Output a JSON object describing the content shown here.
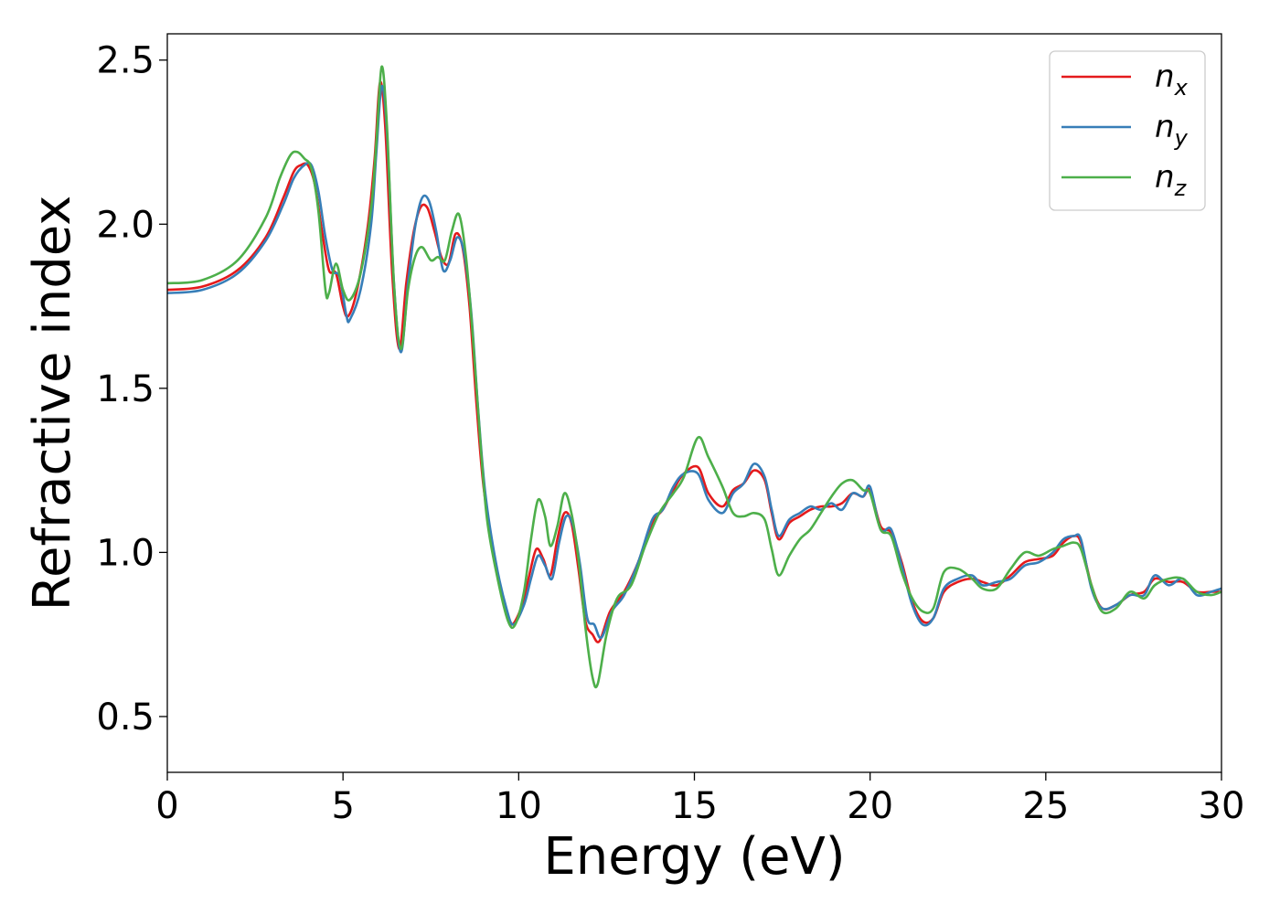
{
  "chart_data": {
    "type": "line",
    "title": "",
    "xlabel": "Energy (eV)",
    "ylabel": "Refractive index",
    "xlim": [
      0,
      30
    ],
    "ylim": [
      0.33,
      2.58
    ],
    "xticks": [
      0,
      5,
      10,
      15,
      20,
      25,
      30
    ],
    "xtick_labels": [
      "0",
      "5",
      "10",
      "15",
      "20",
      "25",
      "30"
    ],
    "yticks": [
      0.5,
      1.0,
      1.5,
      2.0,
      2.5
    ],
    "ytick_labels": [
      "0.5",
      "1.0",
      "1.5",
      "2.0",
      "2.5"
    ],
    "grid": false,
    "legend_position": "top-right",
    "series": [
      {
        "name": "n",
        "subscript": "x",
        "color": "#e41a1c",
        "points": [
          [
            0,
            1.8
          ],
          [
            1,
            1.81
          ],
          [
            2,
            1.86
          ],
          [
            2.8,
            1.96
          ],
          [
            3.3,
            2.08
          ],
          [
            3.6,
            2.16
          ],
          [
            3.8,
            2.18
          ],
          [
            4.0,
            2.18
          ],
          [
            4.2,
            2.12
          ],
          [
            4.4,
            1.98
          ],
          [
            4.6,
            1.86
          ],
          [
            4.8,
            1.85
          ],
          [
            5.0,
            1.75
          ],
          [
            5.15,
            1.72
          ],
          [
            5.4,
            1.8
          ],
          [
            5.7,
            1.99
          ],
          [
            5.9,
            2.2
          ],
          [
            6.05,
            2.43
          ],
          [
            6.2,
            2.3
          ],
          [
            6.4,
            1.85
          ],
          [
            6.6,
            1.62
          ],
          [
            6.8,
            1.82
          ],
          [
            7.0,
            1.97
          ],
          [
            7.2,
            2.05
          ],
          [
            7.4,
            2.05
          ],
          [
            7.6,
            1.98
          ],
          [
            7.8,
            1.9
          ],
          [
            8.0,
            1.88
          ],
          [
            8.2,
            1.97
          ],
          [
            8.4,
            1.93
          ],
          [
            8.6,
            1.75
          ],
          [
            8.8,
            1.45
          ],
          [
            9.0,
            1.2
          ],
          [
            9.3,
            0.99
          ],
          [
            9.6,
            0.84
          ],
          [
            9.8,
            0.78
          ],
          [
            10.1,
            0.84
          ],
          [
            10.3,
            0.93
          ],
          [
            10.5,
            1.01
          ],
          [
            10.7,
            0.98
          ],
          [
            10.9,
            0.93
          ],
          [
            11.1,
            1.04
          ],
          [
            11.3,
            1.12
          ],
          [
            11.5,
            1.09
          ],
          [
            11.7,
            0.95
          ],
          [
            11.9,
            0.79
          ],
          [
            12.1,
            0.75
          ],
          [
            12.3,
            0.73
          ],
          [
            12.6,
            0.82
          ],
          [
            13.0,
            0.88
          ],
          [
            13.4,
            0.97
          ],
          [
            13.8,
            1.09
          ],
          [
            14.1,
            1.13
          ],
          [
            14.4,
            1.19
          ],
          [
            14.7,
            1.24
          ],
          [
            15.1,
            1.26
          ],
          [
            15.4,
            1.18
          ],
          [
            15.8,
            1.14
          ],
          [
            16.1,
            1.19
          ],
          [
            16.4,
            1.21
          ],
          [
            16.7,
            1.25
          ],
          [
            17.0,
            1.22
          ],
          [
            17.2,
            1.12
          ],
          [
            17.4,
            1.04
          ],
          [
            17.7,
            1.09
          ],
          [
            18.0,
            1.11
          ],
          [
            18.3,
            1.13
          ],
          [
            18.6,
            1.14
          ],
          [
            18.9,
            1.14
          ],
          [
            19.2,
            1.15
          ],
          [
            19.5,
            1.18
          ],
          [
            19.8,
            1.17
          ],
          [
            20.0,
            1.19
          ],
          [
            20.3,
            1.08
          ],
          [
            20.6,
            1.06
          ],
          [
            20.9,
            0.97
          ],
          [
            21.2,
            0.85
          ],
          [
            21.5,
            0.79
          ],
          [
            21.8,
            0.8
          ],
          [
            22.1,
            0.88
          ],
          [
            22.5,
            0.91
          ],
          [
            22.9,
            0.92
          ],
          [
            23.2,
            0.91
          ],
          [
            23.6,
            0.9
          ],
          [
            24.0,
            0.93
          ],
          [
            24.4,
            0.97
          ],
          [
            24.8,
            0.98
          ],
          [
            25.2,
            0.99
          ],
          [
            25.5,
            1.03
          ],
          [
            25.8,
            1.05
          ],
          [
            26.0,
            1.03
          ],
          [
            26.3,
            0.9
          ],
          [
            26.6,
            0.83
          ],
          [
            27.0,
            0.84
          ],
          [
            27.4,
            0.87
          ],
          [
            27.8,
            0.88
          ],
          [
            28.1,
            0.92
          ],
          [
            28.5,
            0.91
          ],
          [
            28.9,
            0.91
          ],
          [
            29.3,
            0.88
          ],
          [
            29.7,
            0.88
          ],
          [
            30,
            0.88
          ]
        ]
      },
      {
        "name": "n",
        "subscript": "y",
        "color": "#377eb8",
        "points": [
          [
            0,
            1.79
          ],
          [
            1,
            1.8
          ],
          [
            2,
            1.85
          ],
          [
            2.8,
            1.95
          ],
          [
            3.3,
            2.06
          ],
          [
            3.6,
            2.14
          ],
          [
            3.9,
            2.18
          ],
          [
            4.1,
            2.18
          ],
          [
            4.3,
            2.1
          ],
          [
            4.5,
            1.96
          ],
          [
            4.7,
            1.86
          ],
          [
            4.9,
            1.84
          ],
          [
            5.1,
            1.72
          ],
          [
            5.2,
            1.71
          ],
          [
            5.5,
            1.8
          ],
          [
            5.8,
            2.0
          ],
          [
            5.95,
            2.22
          ],
          [
            6.1,
            2.42
          ],
          [
            6.25,
            2.28
          ],
          [
            6.45,
            1.82
          ],
          [
            6.65,
            1.61
          ],
          [
            6.85,
            1.82
          ],
          [
            7.05,
            1.99
          ],
          [
            7.25,
            2.08
          ],
          [
            7.45,
            2.07
          ],
          [
            7.65,
            1.98
          ],
          [
            7.85,
            1.86
          ],
          [
            8.05,
            1.89
          ],
          [
            8.25,
            1.96
          ],
          [
            8.45,
            1.91
          ],
          [
            8.65,
            1.73
          ],
          [
            8.85,
            1.43
          ],
          [
            9.05,
            1.18
          ],
          [
            9.35,
            0.97
          ],
          [
            9.65,
            0.83
          ],
          [
            9.85,
            0.78
          ],
          [
            10.15,
            0.84
          ],
          [
            10.35,
            0.92
          ],
          [
            10.55,
            0.99
          ],
          [
            10.75,
            0.96
          ],
          [
            10.95,
            0.92
          ],
          [
            11.15,
            1.03
          ],
          [
            11.35,
            1.11
          ],
          [
            11.55,
            1.08
          ],
          [
            11.75,
            0.96
          ],
          [
            11.95,
            0.8
          ],
          [
            12.15,
            0.78
          ],
          [
            12.35,
            0.74
          ],
          [
            12.65,
            0.82
          ],
          [
            13.0,
            0.87
          ],
          [
            13.4,
            0.97
          ],
          [
            13.8,
            1.1
          ],
          [
            14.1,
            1.13
          ],
          [
            14.4,
            1.2
          ],
          [
            14.7,
            1.24
          ],
          [
            15.1,
            1.24
          ],
          [
            15.4,
            1.16
          ],
          [
            15.8,
            1.12
          ],
          [
            16.1,
            1.18
          ],
          [
            16.4,
            1.21
          ],
          [
            16.7,
            1.27
          ],
          [
            17.0,
            1.23
          ],
          [
            17.2,
            1.13
          ],
          [
            17.4,
            1.05
          ],
          [
            17.7,
            1.1
          ],
          [
            18.0,
            1.12
          ],
          [
            18.3,
            1.14
          ],
          [
            18.6,
            1.13
          ],
          [
            18.9,
            1.15
          ],
          [
            19.2,
            1.13
          ],
          [
            19.5,
            1.18
          ],
          [
            19.8,
            1.17
          ],
          [
            20.0,
            1.2
          ],
          [
            20.3,
            1.07
          ],
          [
            20.6,
            1.07
          ],
          [
            20.9,
            0.96
          ],
          [
            21.2,
            0.84
          ],
          [
            21.5,
            0.78
          ],
          [
            21.8,
            0.8
          ],
          [
            22.1,
            0.89
          ],
          [
            22.5,
            0.92
          ],
          [
            22.9,
            0.93
          ],
          [
            23.2,
            0.9
          ],
          [
            23.6,
            0.91
          ],
          [
            24.0,
            0.92
          ],
          [
            24.4,
            0.96
          ],
          [
            24.8,
            0.97
          ],
          [
            25.2,
            1.0
          ],
          [
            25.5,
            1.04
          ],
          [
            25.8,
            1.05
          ],
          [
            26.0,
            1.04
          ],
          [
            26.3,
            0.89
          ],
          [
            26.6,
            0.83
          ],
          [
            27.0,
            0.84
          ],
          [
            27.4,
            0.87
          ],
          [
            27.8,
            0.87
          ],
          [
            28.1,
            0.93
          ],
          [
            28.5,
            0.9
          ],
          [
            28.9,
            0.92
          ],
          [
            29.3,
            0.87
          ],
          [
            29.7,
            0.88
          ],
          [
            30,
            0.89
          ]
        ]
      },
      {
        "name": "n",
        "subscript": "z",
        "color": "#4daf4a",
        "points": [
          [
            0,
            1.82
          ],
          [
            1,
            1.83
          ],
          [
            2,
            1.89
          ],
          [
            2.8,
            2.02
          ],
          [
            3.2,
            2.14
          ],
          [
            3.5,
            2.21
          ],
          [
            3.7,
            2.22
          ],
          [
            3.9,
            2.2
          ],
          [
            4.1,
            2.17
          ],
          [
            4.3,
            2.04
          ],
          [
            4.5,
            1.8
          ],
          [
            4.6,
            1.79
          ],
          [
            4.8,
            1.88
          ],
          [
            5.0,
            1.8
          ],
          [
            5.2,
            1.77
          ],
          [
            5.5,
            1.85
          ],
          [
            5.8,
            2.05
          ],
          [
            5.95,
            2.25
          ],
          [
            6.1,
            2.48
          ],
          [
            6.25,
            2.3
          ],
          [
            6.45,
            1.82
          ],
          [
            6.65,
            1.62
          ],
          [
            6.85,
            1.8
          ],
          [
            7.05,
            1.9
          ],
          [
            7.25,
            1.93
          ],
          [
            7.5,
            1.89
          ],
          [
            7.7,
            1.9
          ],
          [
            7.9,
            1.89
          ],
          [
            8.1,
            1.98
          ],
          [
            8.3,
            2.03
          ],
          [
            8.5,
            1.9
          ],
          [
            8.7,
            1.65
          ],
          [
            8.9,
            1.35
          ],
          [
            9.1,
            1.1
          ],
          [
            9.4,
            0.92
          ],
          [
            9.7,
            0.79
          ],
          [
            9.9,
            0.78
          ],
          [
            10.15,
            0.88
          ],
          [
            10.35,
            1.04
          ],
          [
            10.55,
            1.16
          ],
          [
            10.75,
            1.11
          ],
          [
            10.9,
            1.02
          ],
          [
            11.1,
            1.08
          ],
          [
            11.3,
            1.18
          ],
          [
            11.5,
            1.12
          ],
          [
            11.7,
            0.98
          ],
          [
            11.9,
            0.77
          ],
          [
            12.1,
            0.62
          ],
          [
            12.25,
            0.6
          ],
          [
            12.5,
            0.75
          ],
          [
            12.8,
            0.86
          ],
          [
            13.2,
            0.9
          ],
          [
            13.6,
            1.02
          ],
          [
            14.0,
            1.12
          ],
          [
            14.4,
            1.18
          ],
          [
            14.7,
            1.23
          ],
          [
            15.1,
            1.35
          ],
          [
            15.4,
            1.29
          ],
          [
            15.8,
            1.2
          ],
          [
            16.1,
            1.12
          ],
          [
            16.4,
            1.11
          ],
          [
            16.7,
            1.12
          ],
          [
            17.0,
            1.1
          ],
          [
            17.2,
            1.01
          ],
          [
            17.4,
            0.93
          ],
          [
            17.7,
            0.99
          ],
          [
            18.0,
            1.04
          ],
          [
            18.3,
            1.07
          ],
          [
            18.6,
            1.12
          ],
          [
            18.9,
            1.17
          ],
          [
            19.2,
            1.21
          ],
          [
            19.5,
            1.22
          ],
          [
            19.8,
            1.19
          ],
          [
            20.0,
            1.18
          ],
          [
            20.3,
            1.07
          ],
          [
            20.6,
            1.05
          ],
          [
            20.9,
            0.94
          ],
          [
            21.2,
            0.86
          ],
          [
            21.5,
            0.82
          ],
          [
            21.8,
            0.83
          ],
          [
            22.1,
            0.94
          ],
          [
            22.5,
            0.95
          ],
          [
            22.9,
            0.92
          ],
          [
            23.2,
            0.89
          ],
          [
            23.6,
            0.89
          ],
          [
            24.0,
            0.95
          ],
          [
            24.4,
            1.0
          ],
          [
            24.8,
            0.99
          ],
          [
            25.2,
            1.01
          ],
          [
            25.5,
            1.02
          ],
          [
            25.8,
            1.03
          ],
          [
            26.0,
            1.01
          ],
          [
            26.3,
            0.9
          ],
          [
            26.6,
            0.82
          ],
          [
            27.0,
            0.83
          ],
          [
            27.4,
            0.88
          ],
          [
            27.8,
            0.86
          ],
          [
            28.1,
            0.9
          ],
          [
            28.5,
            0.92
          ],
          [
            28.9,
            0.92
          ],
          [
            29.3,
            0.88
          ],
          [
            29.7,
            0.87
          ],
          [
            30,
            0.88
          ]
        ]
      }
    ]
  }
}
